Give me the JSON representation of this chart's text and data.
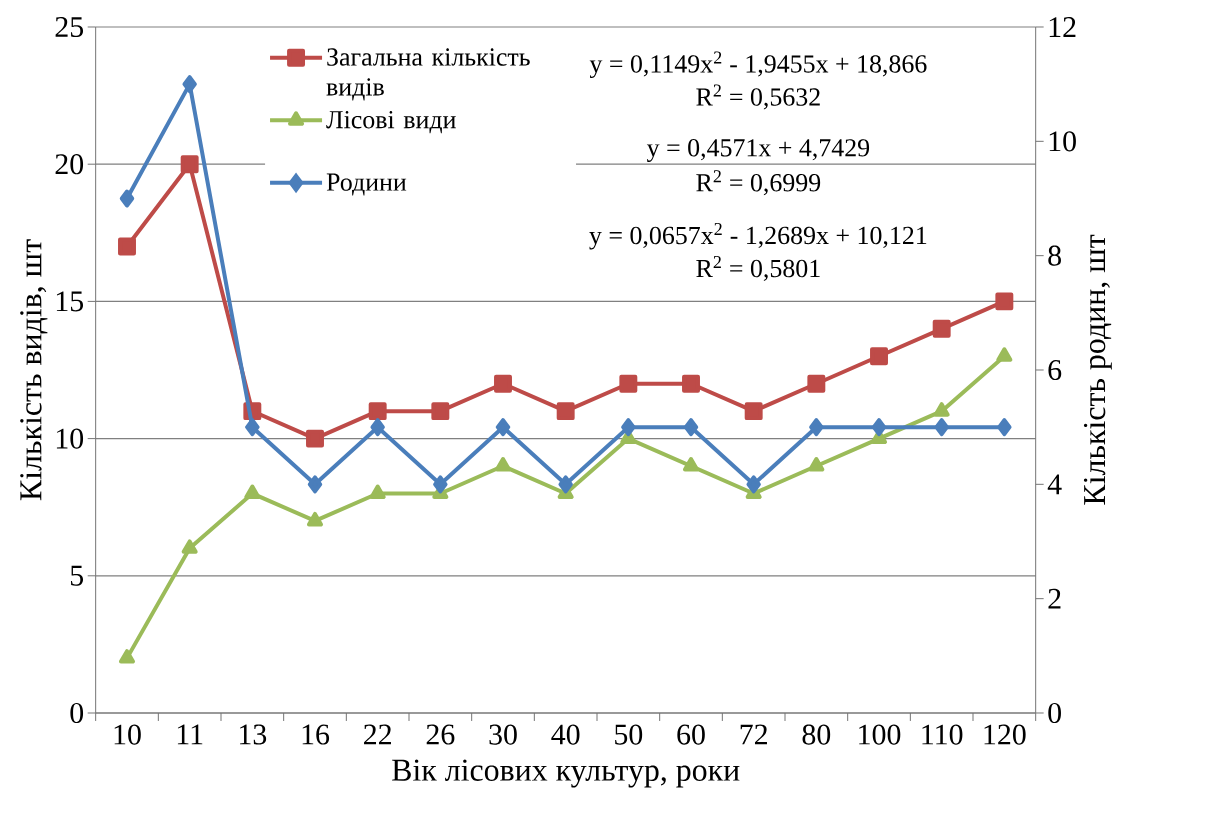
{
  "chart_data": {
    "type": "line",
    "categories": [
      "10",
      "11",
      "13",
      "16",
      "22",
      "26",
      "30",
      "40",
      "50",
      "60",
      "72",
      "80",
      "100",
      "110",
      "120"
    ],
    "series": [
      {
        "name": "Загальна кількість видів",
        "color": "#be4b48",
        "marker": "square",
        "values": [
          17,
          20,
          11,
          10,
          11,
          11,
          12,
          11,
          12,
          12,
          11,
          12,
          13,
          14,
          15
        ]
      },
      {
        "name": "Лісові види",
        "color": "#9bbb59",
        "marker": "triangle",
        "values": [
          2,
          6,
          8,
          7,
          8,
          8,
          9,
          8,
          10,
          9,
          8,
          9,
          10,
          11,
          13
        ]
      },
      {
        "name": "Родини",
        "color": "#4a7ebb",
        "marker": "diamond",
        "axis": "y2",
        "values": [
          9,
          11,
          5,
          4,
          5,
          4,
          5,
          4,
          5,
          5,
          4,
          5,
          5,
          5,
          5
        ]
      }
    ],
    "xlabel": "Вік лісових культур, роки",
    "ylabel": "Кількість видів, шт",
    "y2label": "Кількість родин, шт",
    "ylim": [
      0,
      25
    ],
    "yticks": [
      0,
      5,
      10,
      15,
      20,
      25
    ],
    "y2lim": [
      0,
      12
    ],
    "y2ticks": [
      0,
      2,
      4,
      6,
      8,
      10,
      12
    ],
    "grid": "y",
    "legend": "top left",
    "annotations": [
      "y = 0,1149x$^{2}$ - 1,9455x + 18,866",
      "R$^{2}$ = 0,5632",
      "y = 0,4571x + 4,7429",
      "R$^{2}$ = 0,6999",
      "y = 0,0657x$^{2}$ - 1,2689x + 10,121",
      "R$^{2}$ = 0,5801"
    ]
  }
}
